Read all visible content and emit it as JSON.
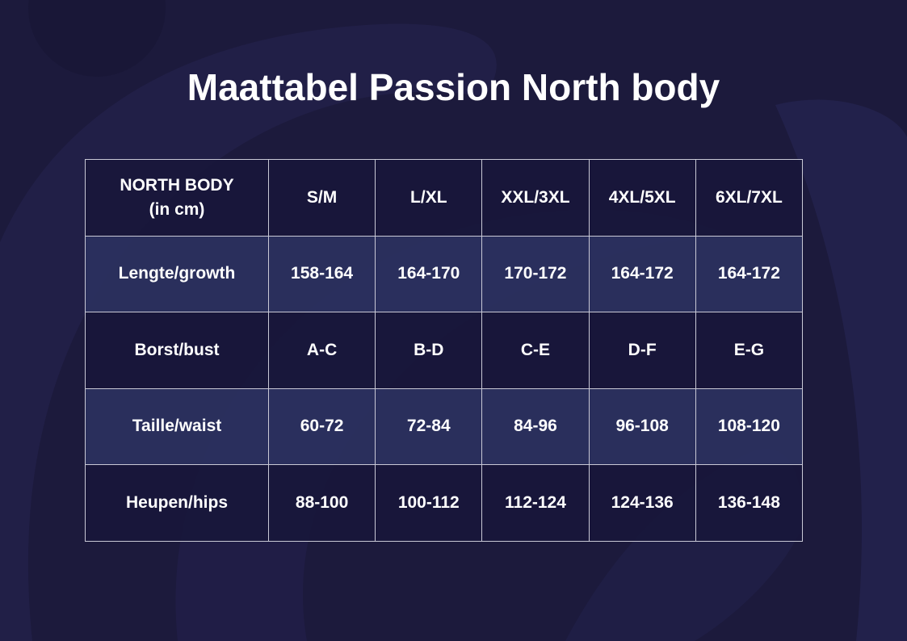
{
  "title": "Maattabel Passion North body",
  "table": {
    "header": {
      "corner_line1": "NORTH BODY",
      "corner_line2": "(in cm)",
      "sizes": [
        "S/M",
        "L/XL",
        "XXL/3XL",
        "4XL/5XL",
        "6XL/7XL"
      ]
    },
    "rows": [
      {
        "label": "Lengte/growth",
        "values": [
          "158-164",
          "164-170",
          "170-172",
          "164-172",
          "164-172"
        ]
      },
      {
        "label": "Borst/bust",
        "values": [
          "A-C",
          "B-D",
          "C-E",
          "D-F",
          "E-G"
        ]
      },
      {
        "label": "Taille/waist",
        "values": [
          "60-72",
          "72-84",
          "84-96",
          "96-108",
          "108-120"
        ]
      },
      {
        "label": "Heupen/hips",
        "values": [
          "88-100",
          "100-112",
          "112-124",
          "124-136",
          "136-148"
        ]
      }
    ]
  },
  "colors": {
    "background": "#1c1a3c",
    "row_light": "#2b3160",
    "row_dark": "#18163a",
    "grid_lines": "#c9c9d6",
    "text": "#ffffff"
  }
}
